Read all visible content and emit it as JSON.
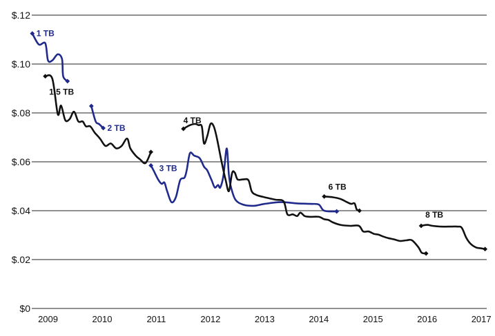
{
  "chart_data": {
    "type": "line",
    "title": "",
    "xlabel": "",
    "ylabel": "",
    "xlim": [
      2008.8,
      2017.2
    ],
    "ylim": [
      0,
      0.12
    ],
    "y_ticks": [
      "$0",
      "$.02",
      "$.04",
      "$.06",
      "$.08",
      "$.10",
      "$.12"
    ],
    "x_ticks": [
      "2009",
      "2010",
      "2011",
      "2012",
      "2013",
      "2014",
      "2015",
      "2016",
      "2017"
    ],
    "grid": "horizontal",
    "colors": {
      "blue": "#1f2a8a",
      "black": "#111111"
    },
    "series": [
      {
        "name": "1 TB",
        "color": "#1f2a8a",
        "points": [
          [
            2008.81,
            0.1125
          ],
          [
            2008.93,
            0.108
          ],
          [
            2009.05,
            0.1085
          ],
          [
            2009.1,
            0.1015
          ],
          [
            2009.18,
            0.1015
          ],
          [
            2009.28,
            0.104
          ],
          [
            2009.36,
            0.102
          ],
          [
            2009.38,
            0.095
          ],
          [
            2009.46,
            0.093
          ]
        ]
      },
      {
        "name": "1.5 TB",
        "color": "#111111",
        "points": [
          [
            2009.05,
            0.095
          ],
          [
            2009.18,
            0.094
          ],
          [
            2009.28,
            0.0795
          ],
          [
            2009.34,
            0.083
          ],
          [
            2009.42,
            0.077
          ],
          [
            2009.5,
            0.0775
          ],
          [
            2009.58,
            0.0805
          ],
          [
            2009.66,
            0.0765
          ],
          [
            2009.74,
            0.0765
          ],
          [
            2009.8,
            0.0745
          ],
          [
            2009.88,
            0.0745
          ],
          [
            2009.96,
            0.072
          ],
          [
            2010.06,
            0.0695
          ],
          [
            2010.16,
            0.0665
          ],
          [
            2010.26,
            0.0675
          ],
          [
            2010.36,
            0.0655
          ],
          [
            2010.46,
            0.0665
          ],
          [
            2010.56,
            0.0695
          ],
          [
            2010.62,
            0.0655
          ],
          [
            2010.72,
            0.0625
          ],
          [
            2010.8,
            0.061
          ],
          [
            2010.9,
            0.0595
          ],
          [
            2011.0,
            0.064
          ]
        ]
      },
      {
        "name": "2 TB",
        "color": "#1f2a8a",
        "points": [
          [
            2009.9,
            0.0828
          ],
          [
            2009.98,
            0.0765
          ],
          [
            2010.04,
            0.0755
          ],
          [
            2010.12,
            0.0738
          ]
        ]
      },
      {
        "name": "3 TB",
        "color": "#1f2a8a",
        "points": [
          [
            2011.0,
            0.0585
          ],
          [
            2011.06,
            0.056
          ],
          [
            2011.14,
            0.0525
          ],
          [
            2011.2,
            0.051
          ],
          [
            2011.25,
            0.0515
          ],
          [
            2011.3,
            0.048
          ],
          [
            2011.38,
            0.0435
          ],
          [
            2011.46,
            0.0455
          ],
          [
            2011.54,
            0.0525
          ],
          [
            2011.62,
            0.0535
          ],
          [
            2011.66,
            0.0565
          ],
          [
            2011.72,
            0.0635
          ],
          [
            2011.8,
            0.0625
          ],
          [
            2011.9,
            0.0615
          ],
          [
            2011.98,
            0.058
          ],
          [
            2012.04,
            0.0565
          ],
          [
            2012.12,
            0.0525
          ],
          [
            2012.18,
            0.0495
          ],
          [
            2012.24,
            0.0505
          ],
          [
            2012.28,
            0.0495
          ],
          [
            2012.34,
            0.0545
          ],
          [
            2012.4,
            0.0655
          ],
          [
            2012.44,
            0.0545
          ],
          [
            2012.48,
            0.0495
          ],
          [
            2012.56,
            0.0445
          ],
          [
            2012.7,
            0.0425
          ],
          [
            2012.9,
            0.042
          ],
          [
            2013.1,
            0.0428
          ],
          [
            2013.4,
            0.0435
          ],
          [
            2013.7,
            0.043
          ],
          [
            2013.95,
            0.0428
          ],
          [
            2014.1,
            0.0425
          ],
          [
            2014.2,
            0.04
          ],
          [
            2014.43,
            0.0397
          ]
        ]
      },
      {
        "name": "4 TB",
        "color": "#111111",
        "points": [
          [
            2011.6,
            0.0735
          ],
          [
            2011.72,
            0.075
          ],
          [
            2011.82,
            0.0755
          ],
          [
            2011.88,
            0.075
          ],
          [
            2011.94,
            0.0745
          ],
          [
            2011.98,
            0.0675
          ],
          [
            2012.04,
            0.0705
          ],
          [
            2012.1,
            0.0755
          ],
          [
            2012.16,
            0.0745
          ],
          [
            2012.22,
            0.0695
          ],
          [
            2012.3,
            0.0605
          ],
          [
            2012.38,
            0.0525
          ],
          [
            2012.44,
            0.048
          ],
          [
            2012.5,
            0.0555
          ],
          [
            2012.55,
            0.0555
          ],
          [
            2012.6,
            0.0528
          ],
          [
            2012.7,
            0.0528
          ],
          [
            2012.8,
            0.0525
          ],
          [
            2012.86,
            0.048
          ],
          [
            2012.94,
            0.0465
          ],
          [
            2013.1,
            0.0455
          ],
          [
            2013.3,
            0.0445
          ],
          [
            2013.45,
            0.0438
          ],
          [
            2013.52,
            0.0385
          ],
          [
            2013.62,
            0.0385
          ],
          [
            2013.7,
            0.0378
          ],
          [
            2013.76,
            0.0392
          ],
          [
            2013.84,
            0.0378
          ],
          [
            2013.94,
            0.0375
          ],
          [
            2014.1,
            0.0375
          ],
          [
            2014.2,
            0.0365
          ],
          [
            2014.28,
            0.0362
          ],
          [
            2014.36,
            0.0352
          ],
          [
            2014.5,
            0.0342
          ],
          [
            2014.68,
            0.0338
          ],
          [
            2014.84,
            0.0338
          ],
          [
            2014.92,
            0.0315
          ],
          [
            2015.02,
            0.0315
          ],
          [
            2015.12,
            0.0305
          ],
          [
            2015.2,
            0.0302
          ],
          [
            2015.28,
            0.0295
          ],
          [
            2015.38,
            0.0288
          ],
          [
            2015.5,
            0.0282
          ],
          [
            2015.6,
            0.0276
          ],
          [
            2015.72,
            0.0279
          ],
          [
            2015.82,
            0.0279
          ],
          [
            2015.94,
            0.025
          ],
          [
            2016.0,
            0.0228
          ],
          [
            2016.08,
            0.0225
          ]
        ]
      },
      {
        "name": "6 TB",
        "color": "#111111",
        "points": [
          [
            2014.2,
            0.0458
          ],
          [
            2014.36,
            0.0455
          ],
          [
            2014.5,
            0.0448
          ],
          [
            2014.62,
            0.0435
          ],
          [
            2014.7,
            0.0428
          ],
          [
            2014.76,
            0.043
          ],
          [
            2014.8,
            0.0405
          ],
          [
            2014.85,
            0.04
          ]
        ]
      },
      {
        "name": "8 TB",
        "color": "#111111",
        "points": [
          [
            2015.99,
            0.0338
          ],
          [
            2016.1,
            0.0342
          ],
          [
            2016.2,
            0.0338
          ],
          [
            2016.35,
            0.0335
          ],
          [
            2016.5,
            0.0335
          ],
          [
            2016.66,
            0.0335
          ],
          [
            2016.74,
            0.033
          ],
          [
            2016.82,
            0.029
          ],
          [
            2016.9,
            0.0265
          ],
          [
            2017.0,
            0.025
          ],
          [
            2017.1,
            0.0246
          ],
          [
            2017.17,
            0.0243
          ]
        ]
      }
    ],
    "series_labels": [
      "1 TB",
      "1.5 TB",
      "2 TB",
      "3 TB",
      "4 TB",
      "6 TB",
      "8 TB"
    ]
  }
}
